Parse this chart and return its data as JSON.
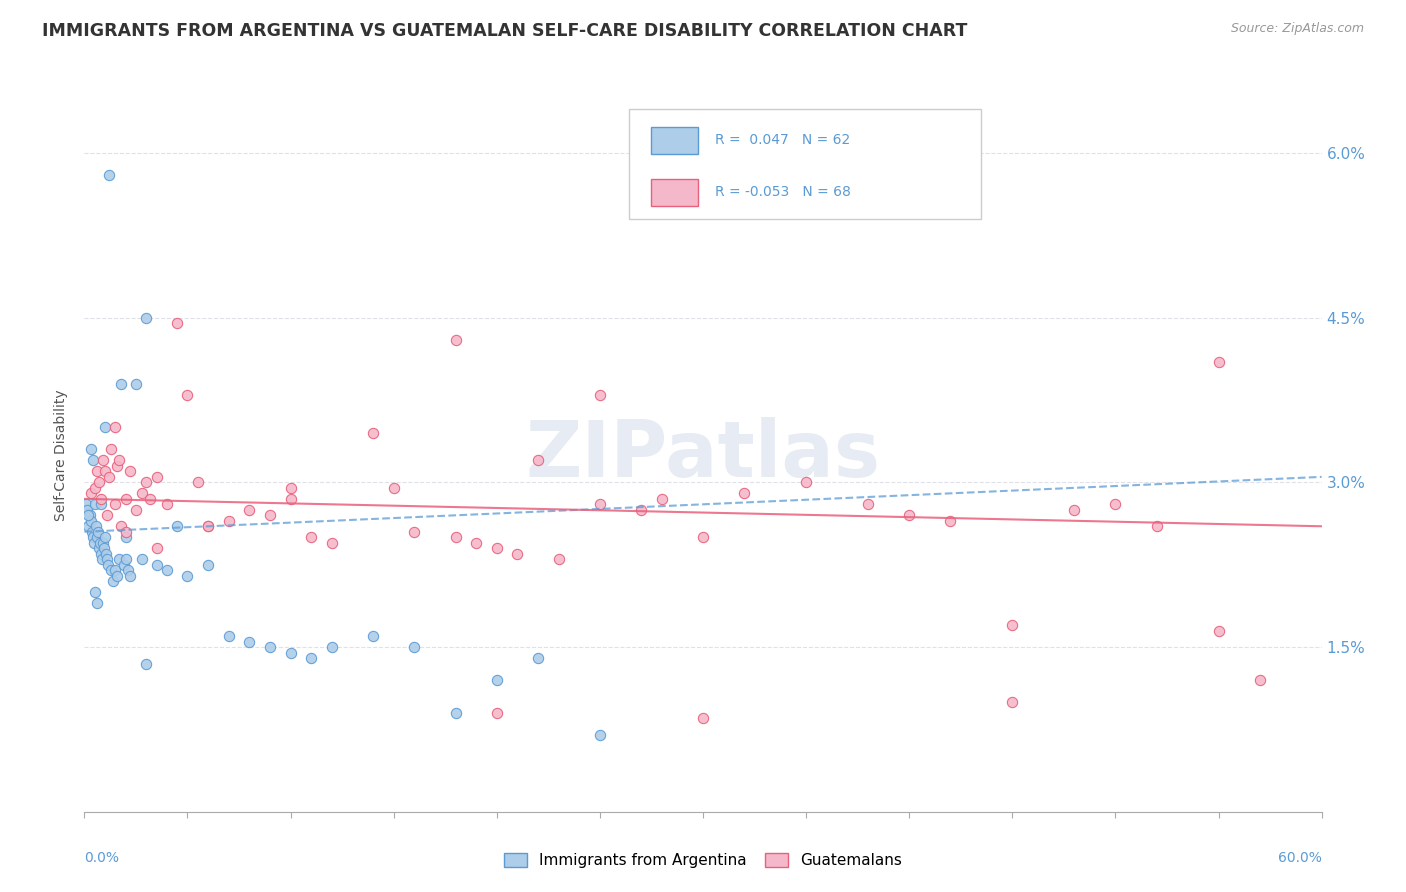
{
  "title": "IMMIGRANTS FROM ARGENTINA VS GUATEMALAN SELF-CARE DISABILITY CORRELATION CHART",
  "source": "Source: ZipAtlas.com",
  "ylabel": "Self-Care Disability",
  "legend_r1": "R =  0.047",
  "legend_n1": "N = 62",
  "legend_r2": "R = -0.053",
  "legend_n2": "N = 68",
  "legend_label1": "Immigrants from Argentina",
  "legend_label2": "Guatemalans",
  "color_blue_fill": "#aecde8",
  "color_blue_edge": "#5b9bd5",
  "color_pink_fill": "#f5b8cb",
  "color_pink_edge": "#e8607a",
  "trend_blue_color": "#5b9bd5",
  "trend_pink_color": "#e8607a",
  "watermark": "ZIPatlas",
  "background_color": "#ffffff",
  "grid_color": "#e0e0e8",
  "xmin": 0.0,
  "xmax": 60.0,
  "ymin": 0.0,
  "ymax": 6.5,
  "ytick_positions": [
    0.0,
    1.5,
    3.0,
    4.5,
    6.0
  ],
  "ytick_labels": [
    "",
    "1.5%",
    "3.0%",
    "4.5%",
    "6.0%"
  ],
  "argentina_x": [
    0.1,
    0.15,
    0.2,
    0.25,
    0.3,
    0.35,
    0.4,
    0.45,
    0.5,
    0.55,
    0.6,
    0.65,
    0.7,
    0.75,
    0.8,
    0.85,
    0.9,
    0.95,
    1.0,
    1.05,
    1.1,
    1.15,
    1.2,
    1.3,
    1.4,
    1.5,
    1.6,
    1.7,
    1.8,
    1.9,
    2.0,
    2.1,
    2.2,
    2.5,
    2.8,
    3.0,
    3.5,
    4.0,
    5.0,
    6.0,
    7.0,
    8.0,
    9.0,
    10.0,
    11.0,
    12.0,
    14.0,
    16.0,
    18.0,
    20.0,
    22.0,
    25.0,
    0.2,
    0.3,
    0.4,
    0.5,
    0.6,
    0.8,
    1.0,
    2.0,
    3.0,
    4.5
  ],
  "argentina_y": [
    2.8,
    2.75,
    2.6,
    2.7,
    2.65,
    2.55,
    2.5,
    2.45,
    2.8,
    2.6,
    2.5,
    2.55,
    2.4,
    2.45,
    2.35,
    2.3,
    2.45,
    2.4,
    2.5,
    2.35,
    2.3,
    2.25,
    5.8,
    2.2,
    2.1,
    2.2,
    2.15,
    2.3,
    3.9,
    2.25,
    2.3,
    2.2,
    2.15,
    3.9,
    2.3,
    4.5,
    2.25,
    2.2,
    2.15,
    2.25,
    1.6,
    1.55,
    1.5,
    1.45,
    1.4,
    1.5,
    1.6,
    1.5,
    0.9,
    1.2,
    1.4,
    0.7,
    2.7,
    3.3,
    3.2,
    2.0,
    1.9,
    2.8,
    3.5,
    2.5,
    1.35,
    2.6
  ],
  "guatemalan_x": [
    0.3,
    0.5,
    0.6,
    0.7,
    0.8,
    0.9,
    1.0,
    1.1,
    1.2,
    1.3,
    1.5,
    1.6,
    1.7,
    1.8,
    2.0,
    2.2,
    2.5,
    2.8,
    3.0,
    3.2,
    3.5,
    4.0,
    4.5,
    5.0,
    5.5,
    6.0,
    7.0,
    8.0,
    9.0,
    10.0,
    11.0,
    12.0,
    14.0,
    15.0,
    16.0,
    18.0,
    19.0,
    20.0,
    21.0,
    22.0,
    23.0,
    25.0,
    27.0,
    28.0,
    30.0,
    32.0,
    35.0,
    38.0,
    40.0,
    42.0,
    45.0,
    48.0,
    50.0,
    52.0,
    55.0,
    57.0,
    20.0,
    30.0,
    45.0,
    55.0,
    38.0,
    25.0,
    18.0,
    10.0,
    6.0,
    3.5,
    2.0,
    1.5
  ],
  "guatemalan_y": [
    2.9,
    2.95,
    3.1,
    3.0,
    2.85,
    3.2,
    3.1,
    2.7,
    3.05,
    3.3,
    2.8,
    3.15,
    3.2,
    2.6,
    2.85,
    3.1,
    2.75,
    2.9,
    3.0,
    2.85,
    3.05,
    2.8,
    4.45,
    3.8,
    3.0,
    2.6,
    2.65,
    2.75,
    2.7,
    2.95,
    2.5,
    2.45,
    3.45,
    2.95,
    2.55,
    2.5,
    2.45,
    2.4,
    2.35,
    3.2,
    2.3,
    2.8,
    2.75,
    2.85,
    2.5,
    2.9,
    3.0,
    2.8,
    2.7,
    2.65,
    1.7,
    2.75,
    2.8,
    2.6,
    4.1,
    1.2,
    0.9,
    0.85,
    1.0,
    1.65,
    5.7,
    3.8,
    4.3,
    2.85,
    2.6,
    2.4,
    2.55,
    3.5
  ],
  "trend_blue_y0": 2.55,
  "trend_blue_y1": 3.05,
  "trend_pink_y0": 2.85,
  "trend_pink_y1": 2.6
}
